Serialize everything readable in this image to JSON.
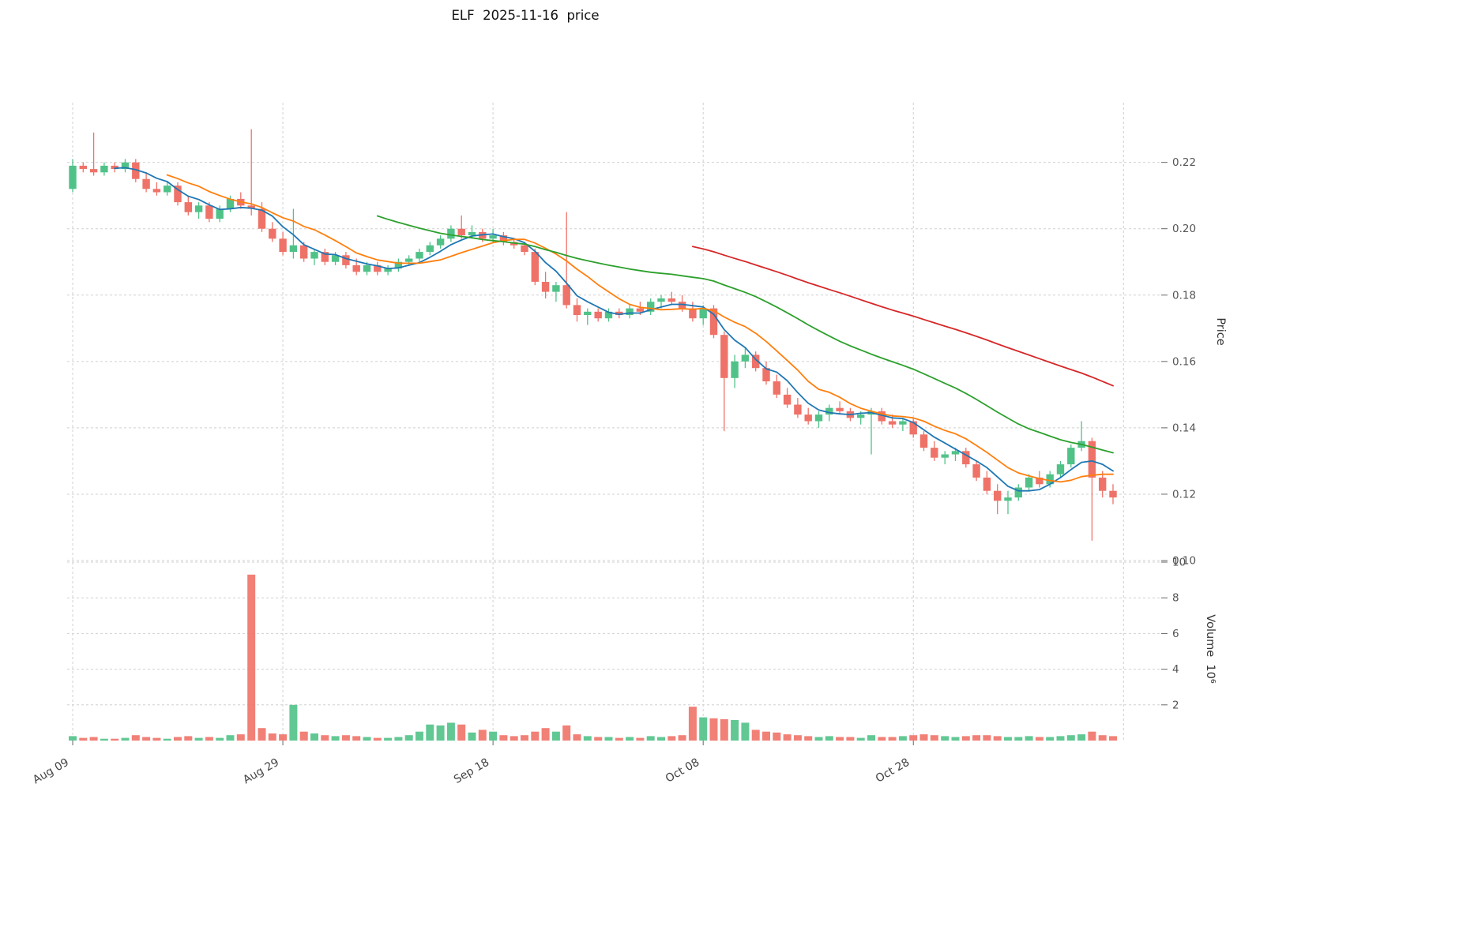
{
  "title": "ELF  2025-11-16  price",
  "axes": {
    "price_label": "Price",
    "volume_label": "Volume  10⁶",
    "price_ticks": [
      0.1,
      0.12,
      0.14,
      0.16,
      0.18,
      0.2,
      0.22
    ],
    "volume_ticks": [
      2,
      4,
      6,
      8,
      10
    ],
    "x_ticks": [
      "Aug 09",
      "Aug 29",
      "Sep 18",
      "Oct 08",
      "Oct 28"
    ],
    "x_tick_indices": [
      0,
      20,
      40,
      60,
      80
    ],
    "x_grid_indices": [
      0,
      20,
      40,
      60,
      80,
      100
    ]
  },
  "chart_data": {
    "type": "candlestick",
    "symbol": "ELF",
    "as_of_date": "2025-11-16",
    "price_range": [
      0.1,
      0.238
    ],
    "volume_range": [
      0,
      10
    ],
    "colors": {
      "up": "#50c288",
      "down": "#ef7268",
      "grid": "#d0d0d0",
      "y_tick_text": "#555555",
      "x_tick_text": "#444444",
      "tick_mark": "#666666"
    },
    "moving_averages": [
      {
        "period": 5,
        "color": "#1f77b4"
      },
      {
        "period": 10,
        "color": "#ff7f0e"
      },
      {
        "period": 30,
        "color": "#2ca02c"
      },
      {
        "period": 60,
        "color": "#d62728"
      }
    ],
    "dates": [
      "2025-08-09",
      "2025-08-10",
      "2025-08-11",
      "2025-08-12",
      "2025-08-13",
      "2025-08-14",
      "2025-08-15",
      "2025-08-16",
      "2025-08-17",
      "2025-08-18",
      "2025-08-19",
      "2025-08-20",
      "2025-08-21",
      "2025-08-22",
      "2025-08-23",
      "2025-08-24",
      "2025-08-25",
      "2025-08-26",
      "2025-08-27",
      "2025-08-28",
      "2025-08-29",
      "2025-08-30",
      "2025-08-31",
      "2025-09-01",
      "2025-09-02",
      "2025-09-03",
      "2025-09-04",
      "2025-09-05",
      "2025-09-06",
      "2025-09-07",
      "2025-09-08",
      "2025-09-09",
      "2025-09-10",
      "2025-09-11",
      "2025-09-12",
      "2025-09-13",
      "2025-09-14",
      "2025-09-15",
      "2025-09-16",
      "2025-09-17",
      "2025-09-18",
      "2025-09-19",
      "2025-09-20",
      "2025-09-21",
      "2025-09-22",
      "2025-09-23",
      "2025-09-24",
      "2025-09-25",
      "2025-09-26",
      "2025-09-27",
      "2025-09-28",
      "2025-09-29",
      "2025-09-30",
      "2025-10-01",
      "2025-10-02",
      "2025-10-03",
      "2025-10-04",
      "2025-10-05",
      "2025-10-06",
      "2025-10-07",
      "2025-10-08",
      "2025-10-09",
      "2025-10-10",
      "2025-10-11",
      "2025-10-12",
      "2025-10-13",
      "2025-10-14",
      "2025-10-15",
      "2025-10-16",
      "2025-10-17",
      "2025-10-18",
      "2025-10-19",
      "2025-10-20",
      "2025-10-21",
      "2025-10-22",
      "2025-10-23",
      "2025-10-24",
      "2025-10-25",
      "2025-10-26",
      "2025-10-27",
      "2025-10-28",
      "2025-10-29",
      "2025-10-30",
      "2025-10-31",
      "2025-11-01",
      "2025-11-02",
      "2025-11-03",
      "2025-11-04",
      "2025-11-05",
      "2025-11-06",
      "2025-11-07",
      "2025-11-08",
      "2025-11-09",
      "2025-11-10",
      "2025-11-11",
      "2025-11-12",
      "2025-11-13",
      "2025-11-14",
      "2025-11-15",
      "2025-11-16"
    ],
    "open": [
      0.212,
      0.219,
      0.218,
      0.217,
      0.219,
      0.218,
      0.22,
      0.215,
      0.212,
      0.211,
      0.213,
      0.208,
      0.205,
      0.207,
      0.203,
      0.206,
      0.209,
      0.207,
      0.206,
      0.2,
      0.197,
      0.193,
      0.195,
      0.191,
      0.193,
      0.19,
      0.192,
      0.189,
      0.187,
      0.189,
      0.187,
      0.188,
      0.19,
      0.191,
      0.193,
      0.195,
      0.197,
      0.2,
      0.198,
      0.199,
      0.197,
      0.198,
      0.196,
      0.195,
      0.193,
      0.184,
      0.181,
      0.183,
      0.177,
      0.174,
      0.175,
      0.173,
      0.175,
      0.174,
      0.176,
      0.175,
      0.178,
      0.179,
      0.178,
      0.176,
      0.173,
      0.176,
      0.168,
      0.155,
      0.16,
      0.162,
      0.158,
      0.154,
      0.15,
      0.147,
      0.144,
      0.142,
      0.144,
      0.146,
      0.145,
      0.143,
      0.144,
      0.145,
      0.142,
      0.141,
      0.142,
      0.138,
      0.134,
      0.131,
      0.132,
      0.133,
      0.129,
      0.125,
      0.121,
      0.118,
      0.119,
      0.122,
      0.125,
      0.123,
      0.126,
      0.129,
      0.134,
      0.136,
      0.125,
      0.121
    ],
    "high": [
      0.221,
      0.22,
      0.229,
      0.22,
      0.22,
      0.221,
      0.221,
      0.217,
      0.214,
      0.214,
      0.214,
      0.21,
      0.208,
      0.208,
      0.207,
      0.21,
      0.211,
      0.23,
      0.208,
      0.202,
      0.199,
      0.206,
      0.196,
      0.194,
      0.194,
      0.193,
      0.193,
      0.191,
      0.19,
      0.19,
      0.189,
      0.191,
      0.192,
      0.194,
      0.196,
      0.198,
      0.201,
      0.204,
      0.201,
      0.2,
      0.2,
      0.199,
      0.197,
      0.196,
      0.194,
      0.187,
      0.184,
      0.205,
      0.179,
      0.176,
      0.176,
      0.176,
      0.176,
      0.177,
      0.178,
      0.179,
      0.18,
      0.181,
      0.18,
      0.178,
      0.177,
      0.177,
      0.169,
      0.162,
      0.164,
      0.163,
      0.16,
      0.156,
      0.152,
      0.149,
      0.146,
      0.145,
      0.147,
      0.148,
      0.146,
      0.145,
      0.146,
      0.146,
      0.144,
      0.143,
      0.143,
      0.139,
      0.136,
      0.133,
      0.134,
      0.134,
      0.13,
      0.127,
      0.123,
      0.121,
      0.123,
      0.126,
      0.127,
      0.127,
      0.13,
      0.135,
      0.142,
      0.137,
      0.127,
      0.123
    ],
    "low": [
      0.211,
      0.217,
      0.216,
      0.216,
      0.217,
      0.217,
      0.214,
      0.211,
      0.21,
      0.21,
      0.207,
      0.204,
      0.203,
      0.202,
      0.202,
      0.205,
      0.206,
      0.204,
      0.199,
      0.196,
      0.192,
      0.191,
      0.19,
      0.189,
      0.189,
      0.189,
      0.188,
      0.186,
      0.186,
      0.186,
      0.186,
      0.187,
      0.189,
      0.19,
      0.192,
      0.194,
      0.196,
      0.197,
      0.197,
      0.196,
      0.196,
      0.195,
      0.194,
      0.192,
      0.183,
      0.179,
      0.178,
      0.176,
      0.172,
      0.171,
      0.172,
      0.172,
      0.173,
      0.173,
      0.174,
      0.174,
      0.176,
      0.177,
      0.175,
      0.172,
      0.171,
      0.167,
      0.139,
      0.152,
      0.158,
      0.157,
      0.153,
      0.149,
      0.146,
      0.143,
      0.141,
      0.14,
      0.142,
      0.144,
      0.142,
      0.141,
      0.132,
      0.141,
      0.14,
      0.139,
      0.137,
      0.133,
      0.13,
      0.129,
      0.13,
      0.128,
      0.124,
      0.12,
      0.114,
      0.114,
      0.118,
      0.121,
      0.122,
      0.122,
      0.125,
      0.128,
      0.133,
      0.106,
      0.119,
      0.117
    ],
    "close": [
      0.219,
      0.218,
      0.217,
      0.219,
      0.218,
      0.22,
      0.215,
      0.212,
      0.211,
      0.213,
      0.208,
      0.205,
      0.207,
      0.203,
      0.206,
      0.209,
      0.207,
      0.206,
      0.2,
      0.197,
      0.193,
      0.195,
      0.191,
      0.193,
      0.19,
      0.192,
      0.189,
      0.187,
      0.189,
      0.187,
      0.188,
      0.19,
      0.191,
      0.193,
      0.195,
      0.197,
      0.2,
      0.198,
      0.199,
      0.197,
      0.198,
      0.196,
      0.195,
      0.193,
      0.184,
      0.181,
      0.183,
      0.177,
      0.174,
      0.175,
      0.173,
      0.175,
      0.174,
      0.176,
      0.175,
      0.178,
      0.179,
      0.178,
      0.176,
      0.173,
      0.176,
      0.168,
      0.155,
      0.16,
      0.162,
      0.158,
      0.154,
      0.15,
      0.147,
      0.144,
      0.142,
      0.144,
      0.146,
      0.145,
      0.143,
      0.144,
      0.145,
      0.142,
      0.141,
      0.142,
      0.138,
      0.134,
      0.131,
      0.132,
      0.133,
      0.129,
      0.125,
      0.121,
      0.118,
      0.119,
      0.122,
      0.125,
      0.123,
      0.126,
      0.129,
      0.134,
      0.136,
      0.125,
      0.121,
      0.119
    ],
    "volume_millions": [
      0.25,
      0.15,
      0.2,
      0.1,
      0.1,
      0.15,
      0.3,
      0.2,
      0.15,
      0.1,
      0.2,
      0.25,
      0.15,
      0.2,
      0.15,
      0.3,
      0.35,
      9.3,
      0.7,
      0.4,
      0.35,
      2.0,
      0.5,
      0.4,
      0.3,
      0.25,
      0.3,
      0.25,
      0.2,
      0.15,
      0.15,
      0.2,
      0.3,
      0.5,
      0.9,
      0.85,
      1.0,
      0.9,
      0.45,
      0.6,
      0.5,
      0.3,
      0.25,
      0.3,
      0.5,
      0.7,
      0.5,
      0.85,
      0.35,
      0.25,
      0.2,
      0.2,
      0.15,
      0.2,
      0.15,
      0.25,
      0.2,
      0.25,
      0.3,
      1.9,
      1.3,
      1.25,
      1.2,
      1.15,
      1.0,
      0.6,
      0.5,
      0.45,
      0.35,
      0.3,
      0.25,
      0.2,
      0.25,
      0.2,
      0.2,
      0.15,
      0.3,
      0.2,
      0.2,
      0.25,
      0.3,
      0.35,
      0.3,
      0.25,
      0.2,
      0.25,
      0.3,
      0.3,
      0.25,
      0.2,
      0.2,
      0.25,
      0.2,
      0.2,
      0.25,
      0.3,
      0.35,
      0.5,
      0.3,
      0.25
    ]
  }
}
